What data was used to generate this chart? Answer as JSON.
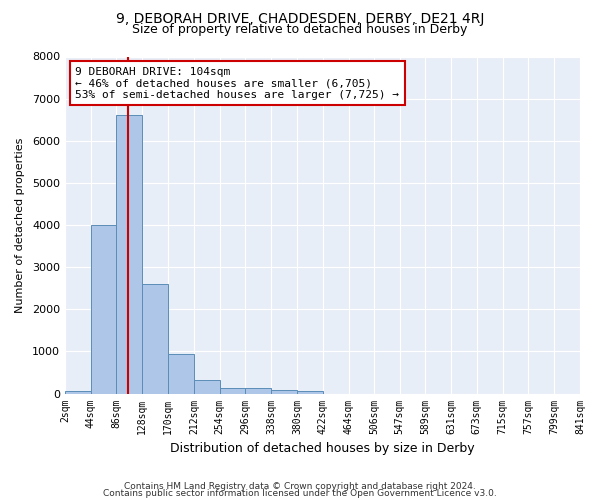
{
  "title1": "9, DEBORAH DRIVE, CHADDESDEN, DERBY, DE21 4RJ",
  "title2": "Size of property relative to detached houses in Derby",
  "xlabel": "Distribution of detached houses by size in Derby",
  "ylabel": "Number of detached properties",
  "footer1": "Contains HM Land Registry data © Crown copyright and database right 2024.",
  "footer2": "Contains public sector information licensed under the Open Government Licence v3.0.",
  "annotation_line1": "9 DEBORAH DRIVE: 104sqm",
  "annotation_line2": "← 46% of detached houses are smaller (6,705)",
  "annotation_line3": "53% of semi-detached houses are larger (7,725) →",
  "property_size_sqm": 104,
  "bin_edges": [
    2,
    44,
    86,
    128,
    170,
    212,
    254,
    296,
    338,
    380,
    422,
    464,
    506,
    547,
    589,
    631,
    673,
    715,
    757,
    799,
    841
  ],
  "bar_heights": [
    70,
    4000,
    6600,
    2600,
    950,
    310,
    120,
    120,
    90,
    70,
    0,
    0,
    0,
    0,
    0,
    0,
    0,
    0,
    0,
    0
  ],
  "bar_color": "#aec6e8",
  "bar_edge_color": "#5b8db8",
  "vline_color": "#cc0000",
  "vline_x": 104,
  "annotation_box_color": "#cc0000",
  "background_color": "#e8eef7",
  "ylim": [
    0,
    8000
  ],
  "yticks": [
    0,
    1000,
    2000,
    3000,
    4000,
    5000,
    6000,
    7000,
    8000
  ]
}
